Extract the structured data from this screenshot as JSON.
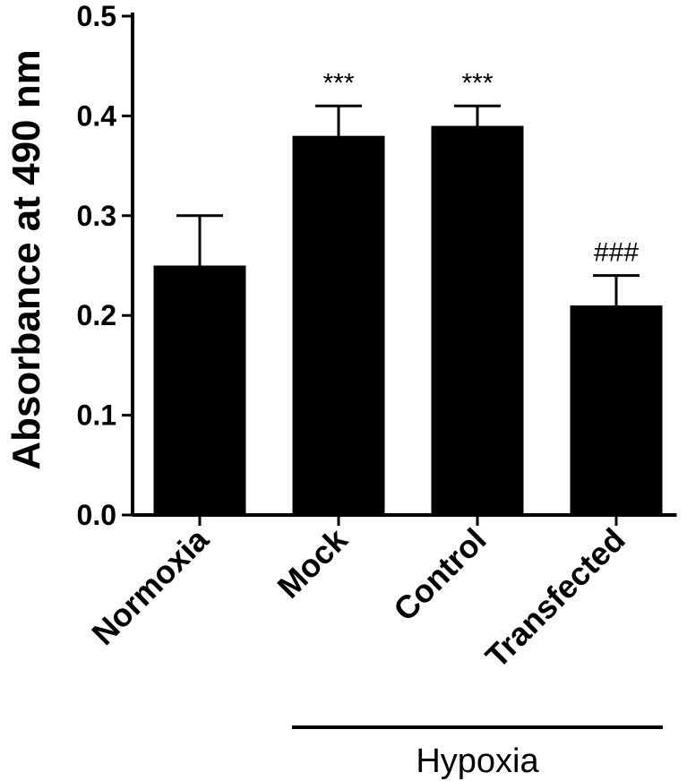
{
  "chart_data": {
    "type": "bar",
    "title": "",
    "xlabel": "",
    "ylabel": "Absorbance at 490 nm",
    "ylim": [
      0,
      0.5
    ],
    "yticks": [
      "0.0",
      "0.1",
      "0.2",
      "0.3",
      "0.4",
      "0.5"
    ],
    "categories": [
      "Normoxia",
      "Mock",
      "Control",
      "Transfected"
    ],
    "values": [
      0.25,
      0.38,
      0.39,
      0.21
    ],
    "error_upper": [
      0.05,
      0.03,
      0.02,
      0.03
    ],
    "significance": [
      "",
      "***",
      "***",
      "###"
    ],
    "group": {
      "label": "Hypoxia",
      "from_category": 1,
      "to_category": 3
    },
    "bar_color": "#000000",
    "grid": false,
    "legend": "none"
  }
}
